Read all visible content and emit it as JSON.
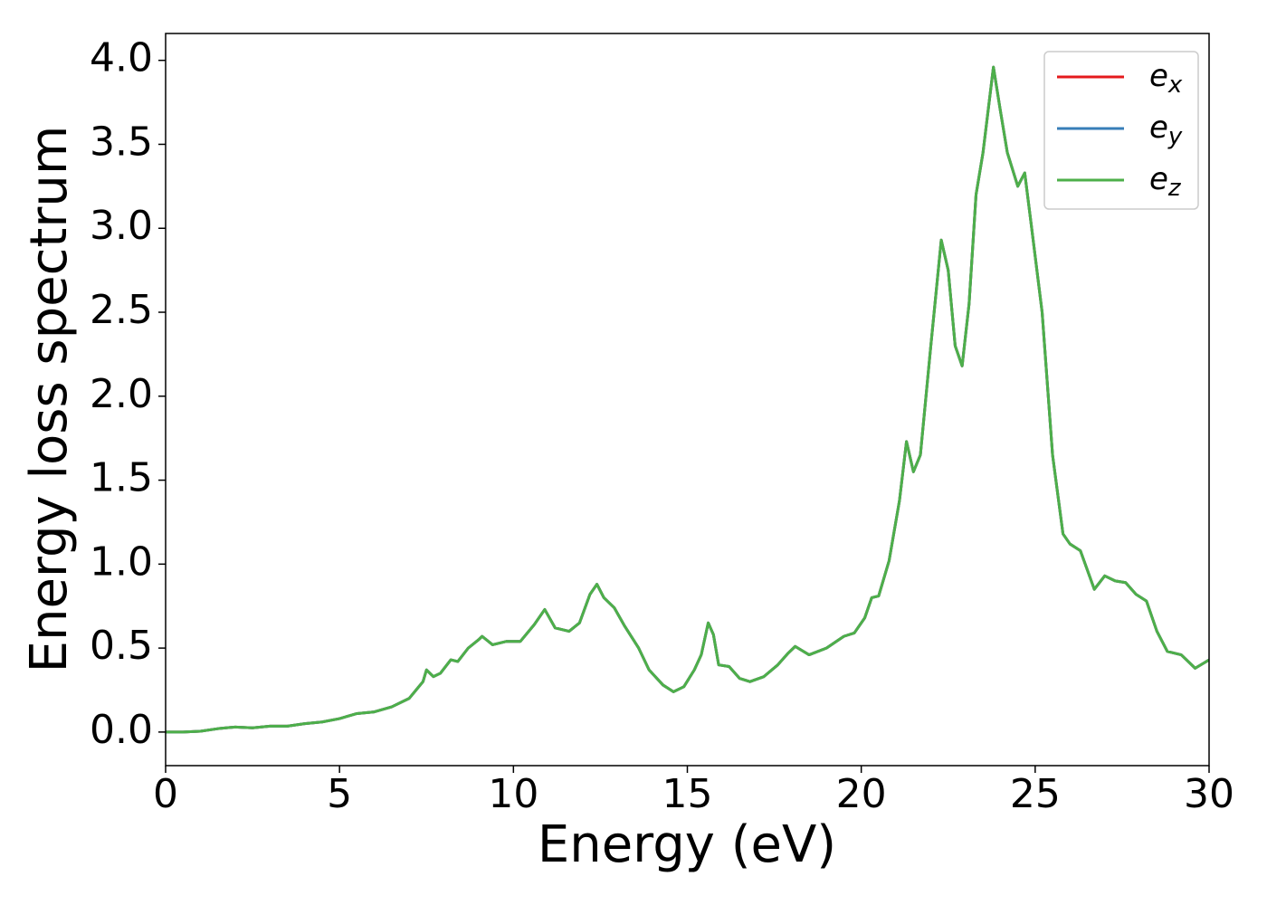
{
  "chart_data": {
    "type": "line",
    "xlabel": "Energy (eV)",
    "ylabel": "Energy loss spectrum",
    "x": [
      0,
      0.5,
      1,
      1.5,
      2,
      2.5,
      3,
      3.5,
      4,
      4.5,
      5,
      5.5,
      6,
      6.5,
      7,
      7.2,
      7.4,
      7.5,
      7.7,
      7.9,
      8.2,
      8.4,
      8.7,
      9.0,
      9.1,
      9.4,
      9.8,
      10.2,
      10.6,
      10.9,
      11.2,
      11.6,
      11.9,
      12.2,
      12.4,
      12.6,
      12.9,
      13.2,
      13.6,
      13.9,
      14.3,
      14.6,
      14.9,
      15.2,
      15.4,
      15.6,
      15.75,
      15.9,
      16.2,
      16.5,
      16.8,
      17.2,
      17.6,
      17.9,
      18.1,
      18.5,
      19.0,
      19.5,
      19.8,
      20.1,
      20.3,
      20.5,
      20.8,
      21.1,
      21.3,
      21.5,
      21.7,
      22.0,
      22.3,
      22.5,
      22.7,
      22.9,
      23.1,
      23.3,
      23.5,
      23.8,
      24.0,
      24.2,
      24.5,
      24.7,
      24.9,
      25.2,
      25.5,
      25.8,
      26.0,
      26.3,
      26.7,
      27.0,
      27.3,
      27.6,
      27.9,
      28.2,
      28.5,
      28.8,
      29.2,
      29.6,
      30
    ],
    "series": [
      {
        "name": "ex",
        "color": "#e41a1c",
        "values": [
          0,
          0,
          0.005,
          0.02,
          0.03,
          0.025,
          0.035,
          0.035,
          0.05,
          0.06,
          0.08,
          0.11,
          0.12,
          0.15,
          0.2,
          0.25,
          0.3,
          0.37,
          0.33,
          0.35,
          0.43,
          0.42,
          0.5,
          0.55,
          0.57,
          0.52,
          0.54,
          0.54,
          0.64,
          0.73,
          0.62,
          0.6,
          0.65,
          0.82,
          0.88,
          0.8,
          0.74,
          0.63,
          0.5,
          0.37,
          0.28,
          0.24,
          0.27,
          0.37,
          0.46,
          0.65,
          0.58,
          0.4,
          0.39,
          0.32,
          0.3,
          0.33,
          0.4,
          0.47,
          0.51,
          0.46,
          0.5,
          0.57,
          0.59,
          0.68,
          0.8,
          0.81,
          1.02,
          1.38,
          1.73,
          1.55,
          1.65,
          2.3,
          2.93,
          2.75,
          2.3,
          2.18,
          2.55,
          3.2,
          3.45,
          3.96,
          3.7,
          3.45,
          3.25,
          3.33,
          3.0,
          2.5,
          1.65,
          1.18,
          1.12,
          1.08,
          0.85,
          0.93,
          0.9,
          0.89,
          0.82,
          0.78,
          0.6,
          0.48,
          0.46,
          0.38,
          0.43
        ]
      },
      {
        "name": "ey",
        "color": "#377eb8",
        "values": [
          0,
          0,
          0.005,
          0.02,
          0.03,
          0.025,
          0.035,
          0.035,
          0.05,
          0.06,
          0.08,
          0.11,
          0.12,
          0.15,
          0.2,
          0.25,
          0.3,
          0.37,
          0.33,
          0.35,
          0.43,
          0.42,
          0.5,
          0.55,
          0.57,
          0.52,
          0.54,
          0.54,
          0.64,
          0.73,
          0.62,
          0.6,
          0.65,
          0.82,
          0.88,
          0.8,
          0.74,
          0.63,
          0.5,
          0.37,
          0.28,
          0.24,
          0.27,
          0.37,
          0.46,
          0.65,
          0.58,
          0.4,
          0.39,
          0.32,
          0.3,
          0.33,
          0.4,
          0.47,
          0.51,
          0.46,
          0.5,
          0.57,
          0.59,
          0.68,
          0.8,
          0.81,
          1.02,
          1.38,
          1.73,
          1.55,
          1.65,
          2.3,
          2.93,
          2.75,
          2.3,
          2.18,
          2.55,
          3.2,
          3.45,
          3.96,
          3.7,
          3.45,
          3.25,
          3.33,
          3.0,
          2.5,
          1.65,
          1.18,
          1.12,
          1.08,
          0.85,
          0.93,
          0.9,
          0.89,
          0.82,
          0.78,
          0.6,
          0.48,
          0.46,
          0.38,
          0.43
        ]
      },
      {
        "name": "ez",
        "color": "#4daf4a",
        "values": [
          0,
          0,
          0.005,
          0.02,
          0.03,
          0.025,
          0.035,
          0.035,
          0.05,
          0.06,
          0.08,
          0.11,
          0.12,
          0.15,
          0.2,
          0.25,
          0.3,
          0.37,
          0.33,
          0.35,
          0.43,
          0.42,
          0.5,
          0.55,
          0.57,
          0.52,
          0.54,
          0.54,
          0.64,
          0.73,
          0.62,
          0.6,
          0.65,
          0.82,
          0.88,
          0.8,
          0.74,
          0.63,
          0.5,
          0.37,
          0.28,
          0.24,
          0.27,
          0.37,
          0.46,
          0.65,
          0.58,
          0.4,
          0.39,
          0.32,
          0.3,
          0.33,
          0.4,
          0.47,
          0.51,
          0.46,
          0.5,
          0.57,
          0.59,
          0.68,
          0.8,
          0.81,
          1.02,
          1.38,
          1.73,
          1.55,
          1.65,
          2.3,
          2.93,
          2.75,
          2.3,
          2.18,
          2.55,
          3.2,
          3.45,
          3.96,
          3.7,
          3.45,
          3.25,
          3.33,
          3.0,
          2.5,
          1.65,
          1.18,
          1.12,
          1.08,
          0.85,
          0.93,
          0.9,
          0.89,
          0.82,
          0.78,
          0.6,
          0.48,
          0.46,
          0.38,
          0.43
        ]
      }
    ],
    "xlim": [
      0,
      30
    ],
    "xticks": [
      0,
      5,
      10,
      15,
      20,
      25,
      30
    ],
    "ylim": [
      -0.2,
      4.16
    ],
    "yticks": [
      {
        "value": 0,
        "label": "0.0"
      },
      {
        "value": 0.5,
        "label": "0.5"
      },
      {
        "value": 1,
        "label": "1.0"
      },
      {
        "value": 1.5,
        "label": "1.5"
      },
      {
        "value": 2,
        "label": "2.0"
      },
      {
        "value": 2.5,
        "label": "2.5"
      },
      {
        "value": 3,
        "label": "3.0"
      },
      {
        "value": 3.5,
        "label": "3.5"
      },
      {
        "value": 4,
        "label": "4.0"
      }
    ],
    "grid": false,
    "legend": "upper right"
  }
}
